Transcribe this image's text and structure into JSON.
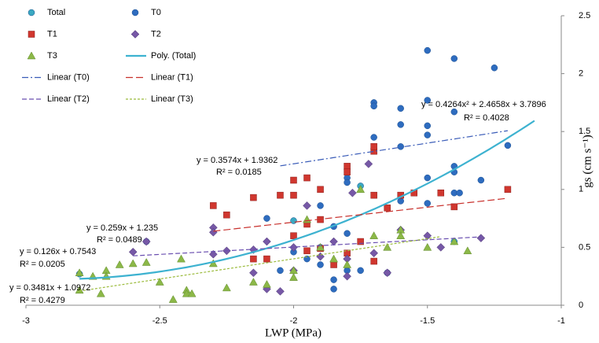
{
  "chart_data": {
    "type": "scatter",
    "xlabel": "LWP (MPa)",
    "ylabel": "gs (cm s⁻¹)",
    "xlim": [
      -3,
      -1
    ],
    "xticks": [
      -3,
      -2.5,
      -2,
      -1.5,
      -1
    ],
    "ylim": [
      0,
      2.5
    ],
    "yticks": [
      0,
      0.5,
      1,
      1.5,
      2,
      2.5
    ],
    "series": [
      {
        "name": "Total",
        "color": "#3aa8c1",
        "marker": "circle",
        "x": [
          -2.8,
          -2.0,
          -1.75,
          -1.4
        ],
        "values": [
          0.27,
          0.73,
          1.03,
          0.55
        ]
      },
      {
        "name": "T0",
        "color": "#2e6cbf",
        "marker": "circle",
        "x": [
          -2.55,
          -1.7,
          -1.7,
          -1.6,
          -1.5,
          -1.4,
          -1.25,
          -1.5,
          -1.4,
          -1.5,
          -1.6,
          -1.5,
          -1.6,
          -1.7,
          -1.4,
          -1.4,
          -1.5,
          -1.4,
          -1.38,
          -1.3,
          -1.2,
          -1.5,
          -1.8,
          -1.8,
          -1.9,
          -1.6,
          -2.1,
          -1.85,
          -1.8,
          -1.9,
          -2.0,
          -1.95,
          -2.05,
          -1.9,
          -1.85,
          -1.8,
          -1.75,
          -1.85,
          -1.65
        ],
        "values": [
          0.55,
          1.75,
          1.72,
          1.7,
          2.2,
          2.13,
          2.05,
          1.77,
          1.67,
          1.55,
          1.56,
          1.47,
          1.37,
          1.45,
          1.2,
          1.15,
          1.1,
          0.97,
          0.97,
          1.08,
          1.38,
          0.88,
          1.1,
          1.06,
          0.86,
          0.9,
          0.75,
          0.68,
          0.62,
          0.5,
          0.46,
          0.4,
          0.3,
          0.35,
          0.22,
          0.3,
          0.3,
          0.14,
          0.28
        ]
      },
      {
        "name": "T1",
        "color": "#d0372f",
        "marker": "square",
        "x": [
          -2.3,
          -2.25,
          -2.15,
          -2.05,
          -2.0,
          -1.95,
          -2.0,
          -1.9,
          -1.8,
          -1.8,
          -1.7,
          -1.7,
          -1.7,
          -1.6,
          -1.55,
          -1.65,
          -1.45,
          -1.4,
          -1.2,
          -1.9,
          -1.8,
          -1.7,
          -1.95,
          -2.0,
          -1.95,
          -2.1,
          -2.15,
          -1.85,
          -1.75,
          -1.9
        ],
        "values": [
          0.86,
          0.78,
          0.93,
          0.95,
          1.08,
          1.1,
          0.95,
          1.0,
          1.2,
          1.15,
          1.33,
          1.37,
          0.95,
          0.95,
          0.97,
          0.84,
          0.97,
          0.85,
          1.0,
          0.74,
          0.45,
          0.38,
          0.47,
          0.6,
          0.7,
          0.4,
          0.4,
          0.35,
          0.55,
          0.49
        ]
      },
      {
        "name": "T2",
        "color": "#7658a6",
        "marker": "diamond",
        "x": [
          -2.6,
          -2.3,
          -2.3,
          -2.25,
          -2.15,
          -2.1,
          -2.0,
          -1.95,
          -1.9,
          -1.85,
          -1.8,
          -1.8,
          -1.7,
          -1.6,
          -1.65,
          -1.5,
          -1.45,
          -1.3,
          -1.72,
          -1.78,
          -2.0,
          -2.1,
          -2.05,
          -2.15,
          -2.3,
          -2.55
        ],
        "values": [
          0.46,
          0.44,
          0.67,
          0.47,
          0.48,
          0.55,
          0.5,
          0.86,
          0.42,
          0.55,
          0.4,
          0.25,
          0.45,
          0.65,
          0.28,
          0.6,
          0.5,
          0.58,
          1.22,
          0.97,
          0.3,
          0.14,
          0.12,
          0.28,
          0.63,
          0.55
        ]
      },
      {
        "name": "T3",
        "color": "#8cb848",
        "marker": "triangle",
        "x": [
          -2.8,
          -2.75,
          -2.7,
          -2.7,
          -2.65,
          -2.6,
          -2.55,
          -2.5,
          -2.45,
          -2.4,
          -2.4,
          -2.38,
          -2.3,
          -2.25,
          -2.15,
          -2.1,
          -2.0,
          -2.0,
          -1.95,
          -1.9,
          -1.85,
          -1.8,
          -1.75,
          -1.7,
          -1.65,
          -1.6,
          -1.6,
          -1.5,
          -1.4,
          -1.35,
          -2.8,
          -2.72,
          -2.42
        ],
        "values": [
          0.28,
          0.25,
          0.3,
          0.25,
          0.35,
          0.36,
          0.37,
          0.2,
          0.05,
          0.13,
          0.1,
          0.1,
          0.36,
          0.15,
          0.2,
          0.18,
          0.3,
          0.24,
          0.74,
          0.5,
          0.4,
          0.35,
          1.0,
          0.6,
          0.5,
          0.65,
          0.6,
          0.5,
          0.55,
          0.47,
          0.13,
          0.1,
          0.4
        ]
      }
    ],
    "trendlines": [
      {
        "name": "Poly. (Total)",
        "color": "#3db2d0",
        "dash": "",
        "width": 2.2,
        "coefficients": [
          3.7896,
          2.4658,
          0.4264
        ],
        "xrange": [
          -2.8,
          -1.1
        ],
        "equation": "y = 0.4264x² + 2.4658x + 3.7896",
        "r2": "R² = 0.4028"
      },
      {
        "name": "Linear (T0)",
        "color": "#3a5cb8",
        "dash": "8 3 2 3",
        "width": 1.2,
        "coefficients": [
          1.9362,
          0.3574
        ],
        "xrange": [
          -2.05,
          -1.2
        ],
        "equation": "y = 0.3574x + 1.9362",
        "r2": "R² = 0.0185"
      },
      {
        "name": "Linear (T1)",
        "color": "#c8302c",
        "dash": "9 4",
        "width": 1.2,
        "coefficients": [
          1.235,
          0.259
        ],
        "xrange": [
          -2.3,
          -1.2
        ],
        "equation": "y = 0.259x + 1.235",
        "r2": "R² = 0.0489"
      },
      {
        "name": "Linear (T2)",
        "color": "#6a4fb0",
        "dash": "6 3",
        "width": 1.2,
        "coefficients": [
          0.7543,
          0.126
        ],
        "xrange": [
          -2.6,
          -1.3
        ],
        "equation": "y = 0.126x + 0.7543",
        "r2": "R² = 0.0205"
      },
      {
        "name": "Linear (T3)",
        "color": "#9bbb3c",
        "dash": "3 2",
        "width": 1.2,
        "coefficients": [
          1.0972,
          0.3481
        ],
        "xrange": [
          -2.8,
          -1.45
        ],
        "equation": "y = 0.3481x + 1.0972",
        "r2": "R² = 0.4279"
      }
    ]
  }
}
